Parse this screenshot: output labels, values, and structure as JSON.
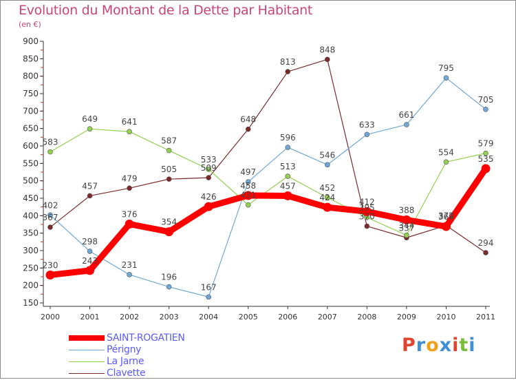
{
  "title": "Evolution du Montant de la Dette par Habitant",
  "unit_label": "(en €)",
  "brand": {
    "text": "Proxiti",
    "colors": [
      "#e0452f",
      "#3d8fd6",
      "#f2a11f",
      "#3d8fd6",
      "#e0452f",
      "#79bd3a",
      "#3d8fd6"
    ]
  },
  "chart_data": {
    "type": "line",
    "x": [
      "2000",
      "2001",
      "2002",
      "2003",
      "2004",
      "2005",
      "2006",
      "2007",
      "2008",
      "2009",
      "2010",
      "2011"
    ],
    "ylim": [
      150,
      900
    ],
    "yticks": [
      150,
      200,
      250,
      300,
      350,
      400,
      450,
      500,
      550,
      600,
      650,
      700,
      750,
      800,
      850,
      900
    ],
    "grid": false,
    "legend_position": "bottom-left",
    "series": [
      {
        "name": "SAINT-ROGATIEN",
        "color": "#ff0000",
        "values": [
          230,
          243,
          376,
          354,
          426,
          458,
          457,
          424,
          412,
          388,
          369,
          535
        ]
      },
      {
        "name": "Périgny",
        "color": "#6fa8d6",
        "values": [
          402,
          298,
          231,
          196,
          167,
          497,
          596,
          546,
          633,
          661,
          795,
          705
        ]
      },
      {
        "name": "La Jarne",
        "color": "#92d050",
        "values": [
          583,
          649,
          641,
          587,
          533,
          431,
          513,
          452,
          395,
          344,
          554,
          579
        ]
      },
      {
        "name": "Clavette",
        "color": "#7b2a2a",
        "values": [
          367,
          457,
          479,
          505,
          509,
          648,
          813,
          848,
          370,
          337,
          372,
          294
        ]
      }
    ]
  }
}
